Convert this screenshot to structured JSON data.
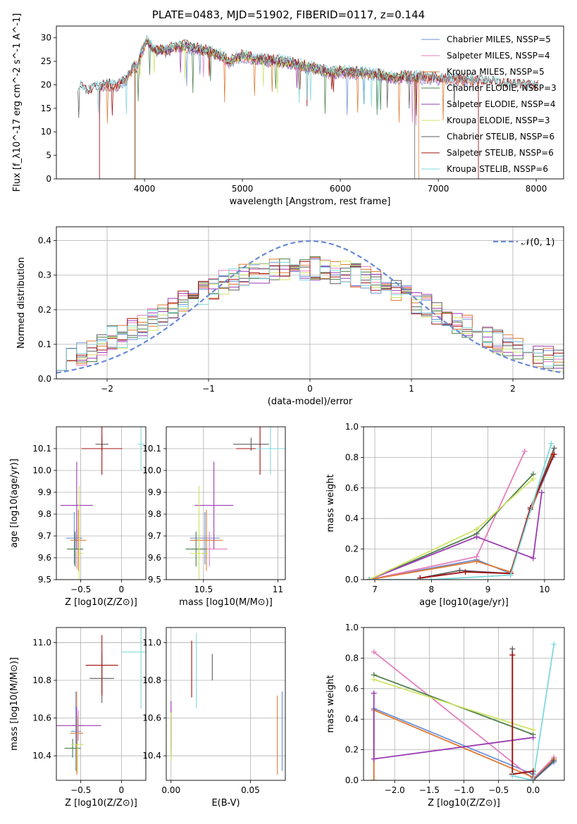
{
  "figure_title": "PLATE=0483, MJD=51902, FIBERID=0117, z=0.144",
  "colors": [
    "#6c8fd8",
    "#e37fbf",
    "#e07a30",
    "#4d7f4b",
    "#9b3bb3",
    "#cfe364",
    "#5d5d5d",
    "#a11010",
    "#7fd8dc"
  ],
  "chart_data": [
    {
      "type": "line",
      "title": "PLATE=0483, MJD=51902, FIBERID=0117, z=0.144",
      "xlabel": "wavelength [Angstrom, rest frame]",
      "ylabel": "Flux [f_λ10^-17 erg cm^-2 s^-1 A^-1]",
      "xlim": [
        3100,
        8280
      ],
      "ylim": [
        0,
        32.5
      ],
      "xticks": [
        4000,
        5000,
        6000,
        7000,
        8000
      ],
      "yticks": [
        0,
        5,
        10,
        15,
        20,
        25,
        30
      ],
      "grid": false,
      "legend_position": "top-right",
      "spectrum_profile": [
        [
          3320,
          19.5
        ],
        [
          3350,
          19.6
        ],
        [
          3420,
          18.7
        ],
        [
          3480,
          19.2
        ],
        [
          3560,
          19.6
        ],
        [
          3620,
          20.1
        ],
        [
          3700,
          19.7
        ],
        [
          3760,
          20.5
        ],
        [
          3820,
          21.2
        ],
        [
          3880,
          23.5
        ],
        [
          3930,
          24.0
        ],
        [
          3980,
          27.5
        ],
        [
          4020,
          29.5
        ],
        [
          4100,
          27.5
        ],
        [
          4200,
          27.3
        ],
        [
          4300,
          27.8
        ],
        [
          4400,
          28.3
        ],
        [
          4500,
          27.7
        ],
        [
          4600,
          27.3
        ],
        [
          4700,
          26.9
        ],
        [
          4800,
          26.0
        ],
        [
          4860,
          24.8
        ],
        [
          4900,
          25.3
        ],
        [
          5000,
          26.1
        ],
        [
          5100,
          25.6
        ],
        [
          5200,
          25.3
        ],
        [
          5300,
          25.1
        ],
        [
          5400,
          25.0
        ],
        [
          5500,
          24.6
        ],
        [
          5600,
          24.1
        ],
        [
          5700,
          23.7
        ],
        [
          5800,
          23.1
        ],
        [
          5900,
          22.6
        ],
        [
          6000,
          22.8
        ],
        [
          6100,
          22.7
        ],
        [
          6200,
          22.6
        ],
        [
          6300,
          22.4
        ],
        [
          6400,
          22.1
        ],
        [
          6500,
          21.7
        ],
        [
          6600,
          21.6
        ],
        [
          6700,
          21.8
        ],
        [
          6800,
          21.6
        ],
        [
          6900,
          21.5
        ],
        [
          7000,
          21.3
        ],
        [
          7100,
          21.2
        ],
        [
          7200,
          21.1
        ],
        [
          7300,
          21.0
        ],
        [
          7400,
          20.9
        ],
        [
          7500,
          20.6
        ],
        [
          7600,
          20.4
        ],
        [
          7700,
          20.1
        ],
        [
          7800,
          19.9
        ],
        [
          7900,
          19.8
        ],
        [
          8000,
          19.7
        ],
        [
          8020,
          19.8
        ]
      ],
      "series": [
        {
          "name": "Chabrier MILES, N_SSP=5",
          "x_range": [
            3540,
            7410
          ]
        },
        {
          "name": "Salpeter MILES, N_SSP=4",
          "x_range": [
            3540,
            7410
          ]
        },
        {
          "name": "Kroupa MILES, N_SSP=5",
          "x_range": [
            3540,
            7410
          ]
        },
        {
          "name": "Chabrier ELODIE, N_SSP=3",
          "x_range": [
            3900,
            6800
          ]
        },
        {
          "name": "Salpeter ELODIE, N_SSP=4",
          "x_range": [
            3900,
            6800
          ]
        },
        {
          "name": "Kroupa ELODIE, N_SSP=3",
          "x_range": [
            3900,
            6800
          ]
        },
        {
          "name": "Chabrier STELIB, N_SSP=6",
          "x_range": [
            3320,
            8020
          ]
        },
        {
          "name": "Salpeter STELIB, N_SSP=6",
          "x_range": [
            3320,
            8020
          ]
        },
        {
          "name": "Kroupa STELIB, N_SSP=6",
          "x_range": [
            3320,
            8020
          ]
        }
      ]
    },
    {
      "type": "histogram",
      "xlabel": "(data-model)/error",
      "ylabel": "Normed distribution",
      "xlim": [
        -2.5,
        2.5
      ],
      "ylim": [
        0,
        0.44
      ],
      "xticks": [
        -2,
        -1,
        0,
        1,
        2
      ],
      "yticks": [
        0.0,
        0.1,
        0.2,
        0.3,
        0.4
      ],
      "grid": true,
      "legend": "𝒩(0, 1)",
      "legend_position": "top-right",
      "bin_edges_range": [
        -2.5,
        2.5
      ],
      "n_bins": 50,
      "reference_curve": "normal(0,1)",
      "series_profile": [
        0.06,
        0.06,
        0.07,
        0.08,
        0.1,
        0.12,
        0.12,
        0.14,
        0.15,
        0.17,
        0.18,
        0.2,
        0.22,
        0.23,
        0.25,
        0.26,
        0.28,
        0.29,
        0.3,
        0.31,
        0.31,
        0.32,
        0.32,
        0.32,
        0.32,
        0.32,
        0.32,
        0.31,
        0.31,
        0.3,
        0.29,
        0.28,
        0.27,
        0.25,
        0.24,
        0.22,
        0.21,
        0.19,
        0.18,
        0.16,
        0.15,
        0.13,
        0.12,
        0.11,
        0.1,
        0.09,
        0.08,
        0.07,
        0.06,
        0.05
      ]
    },
    {
      "type": "scatter",
      "xlabel": "Z [log10(Z/Z⊙)]",
      "ylabel": "age [log10(age/yr)]",
      "xlim": [
        -0.8,
        0.3
      ],
      "ylim": [
        9.5,
        10.2
      ],
      "xticks": [
        -0.5,
        0.0
      ],
      "yticks": [
        9.5,
        9.6,
        9.7,
        9.8,
        9.9,
        10.0,
        10.1
      ],
      "grid": true,
      "points": [
        {
          "x": -0.58,
          "y": 9.69,
          "xerr": 0.1,
          "yerr": 0.12
        },
        {
          "x": -0.55,
          "y": 9.64,
          "xerr": 0.08,
          "yerr": 0.09
        },
        {
          "x": -0.53,
          "y": 9.68,
          "xerr": 0.1,
          "yerr": 0.14
        },
        {
          "x": -0.57,
          "y": 9.64,
          "xerr": 0.1,
          "yerr": 0.08
        },
        {
          "x": -0.55,
          "y": 9.84,
          "xerr": 0.2,
          "yerr": 0.2
        },
        {
          "x": -0.52,
          "y": 9.62,
          "xerr": 0.05,
          "yerr": 0.31
        },
        {
          "x": -0.24,
          "y": 10.12,
          "xerr": 0.08,
          "yerr": 0.03
        },
        {
          "x": -0.24,
          "y": 10.1,
          "xerr": 0.25,
          "yerr": 0.12
        },
        {
          "x": 0.24,
          "y": 10.12,
          "xerr": 0.04,
          "yerr": 0.12
        }
      ]
    },
    {
      "type": "scatter",
      "xlabel": "mass [log10(M/M⊙)]",
      "ylabel": "",
      "xlim": [
        10.25,
        11.05
      ],
      "ylim": [
        9.5,
        10.2
      ],
      "xticks": [
        10.5,
        11.0
      ],
      "yticks": [
        9.5,
        9.6,
        9.7,
        9.8,
        9.9,
        10.0,
        10.1
      ],
      "grid": true,
      "points": [
        {
          "x": 10.51,
          "y": 9.69,
          "xerr": 0.1,
          "yerr": 0.12
        },
        {
          "x": 10.54,
          "y": 9.64,
          "xerr": 0.12,
          "yerr": 0.08
        },
        {
          "x": 10.52,
          "y": 9.68,
          "xerr": 0.11,
          "yerr": 0.14
        },
        {
          "x": 10.45,
          "y": 9.64,
          "xerr": 0.07,
          "yerr": 0.08
        },
        {
          "x": 10.57,
          "y": 9.84,
          "xerr": 0.13,
          "yerr": 0.2
        },
        {
          "x": 10.47,
          "y": 9.62,
          "xerr": 0.06,
          "yerr": 0.31
        },
        {
          "x": 10.82,
          "y": 10.12,
          "xerr": 0.12,
          "yerr": 0.03
        },
        {
          "x": 10.88,
          "y": 10.1,
          "xerr": 0.16,
          "yerr": 0.12
        },
        {
          "x": 10.95,
          "y": 10.1,
          "xerr": 0.1,
          "yerr": 0.12
        }
      ]
    },
    {
      "type": "line",
      "xlabel": "age [log10(age/yr)]",
      "ylabel": "mass weight",
      "xlim": [
        6.8,
        10.35
      ],
      "ylim": [
        0.0,
        1.0
      ],
      "xticks": [
        7,
        8,
        9,
        10
      ],
      "yticks": [
        0.0,
        0.2,
        0.4,
        0.6,
        0.8,
        1.0
      ],
      "grid": true,
      "series": [
        {
          "points": [
            [
              6.9,
              0.0
            ],
            [
              8.8,
              0.13
            ],
            [
              9.4,
              0.04
            ],
            [
              9.7,
              0.4
            ],
            [
              10.15,
              0.8
            ]
          ]
        },
        {
          "points": [
            [
              6.9,
              0.0
            ],
            [
              8.8,
              0.15
            ],
            [
              9.65,
              0.84
            ]
          ]
        },
        {
          "points": [
            [
              6.9,
              0.0
            ],
            [
              8.8,
              0.12
            ],
            [
              9.4,
              0.05
            ],
            [
              9.7,
              0.4
            ],
            [
              10.15,
              0.82
            ]
          ]
        },
        {
          "points": [
            [
              6.9,
              0.0
            ],
            [
              8.8,
              0.3
            ],
            [
              9.8,
              0.69
            ]
          ]
        },
        {
          "points": [
            [
              6.9,
              0.0
            ],
            [
              8.8,
              0.28
            ],
            [
              9.8,
              0.14
            ],
            [
              9.95,
              0.57
            ]
          ]
        },
        {
          "points": [
            [
              6.9,
              0.0
            ],
            [
              8.8,
              0.33
            ],
            [
              9.8,
              0.66
            ]
          ]
        },
        {
          "points": [
            [
              7.8,
              0.01
            ],
            [
              8.5,
              0.06
            ],
            [
              9.4,
              0.04
            ],
            [
              9.75,
              0.46
            ],
            [
              10.17,
              0.86
            ]
          ]
        },
        {
          "points": [
            [
              7.8,
              0.01
            ],
            [
              8.6,
              0.05
            ],
            [
              9.4,
              0.04
            ],
            [
              9.75,
              0.47
            ],
            [
              10.17,
              0.82
            ]
          ]
        },
        {
          "points": [
            [
              6.9,
              0.0
            ],
            [
              8.0,
              0.0
            ],
            [
              9.4,
              0.03
            ],
            [
              10.12,
              0.89
            ]
          ]
        }
      ]
    },
    {
      "type": "scatter",
      "xlabel": "Z [log10(Z/Z⊙)]",
      "ylabel": "mass [log10(M/M⊙)]",
      "xlim": [
        -0.8,
        0.3
      ],
      "ylim": [
        10.27,
        11.08
      ],
      "xticks": [
        -0.5,
        0.0
      ],
      "yticks": [
        10.4,
        10.6,
        10.8,
        11.0
      ],
      "grid": true,
      "points": [
        {
          "x": -0.56,
          "y": 10.53,
          "xerr": 0.06,
          "yerr": 0.21
        },
        {
          "x": -0.53,
          "y": 10.56,
          "xerr": 0.07,
          "yerr": 0.08
        },
        {
          "x": -0.55,
          "y": 10.52,
          "xerr": 0.08,
          "yerr": 0.22
        },
        {
          "x": -0.6,
          "y": 10.44,
          "xerr": 0.1,
          "yerr": 0.05
        },
        {
          "x": -0.55,
          "y": 10.56,
          "xerr": 0.3,
          "yerr": 0.1
        },
        {
          "x": -0.54,
          "y": 10.46,
          "xerr": 0.08,
          "yerr": 0.15
        },
        {
          "x": -0.24,
          "y": 10.81,
          "xerr": 0.15,
          "yerr": 0.13
        },
        {
          "x": -0.24,
          "y": 10.88,
          "xerr": 0.2,
          "yerr": 0.16
        },
        {
          "x": 0.24,
          "y": 10.95,
          "xerr": 0.24,
          "yerr": 0.3
        }
      ]
    },
    {
      "type": "scatter",
      "xlabel": "E(B-V)",
      "ylabel": "",
      "xlim": [
        -0.003,
        0.072
      ],
      "ylim": [
        10.27,
        11.08
      ],
      "xticks": [
        0.0,
        0.05
      ],
      "xtick_labels": [
        "0.00",
        "0.05"
      ],
      "yticks": [
        10.4,
        10.6,
        10.8,
        11.0
      ],
      "grid": true,
      "points": [
        {
          "x": 0.07,
          "y": 10.53,
          "yerr": 0.21
        },
        {
          "x": 0.0,
          "y": 10.56,
          "yerr": 0.08
        },
        {
          "x": 0.067,
          "y": 10.51,
          "yerr": 0.21
        },
        {
          "x": 0.0,
          "y": 10.5,
          "yerr": 0.1
        },
        {
          "x": 0.0,
          "y": 10.56,
          "yerr": 0.13
        },
        {
          "x": 0.0,
          "y": 10.5,
          "yerr": 0.13
        },
        {
          "x": 0.026,
          "y": 10.87,
          "yerr": 0.07
        },
        {
          "x": 0.013,
          "y": 10.86,
          "yerr": 0.15
        },
        {
          "x": 0.016,
          "y": 10.85,
          "yerr": 0.2
        }
      ]
    },
    {
      "type": "line",
      "xlabel": "Z [log10(Z/Z⊙)]",
      "ylabel": "mass weight",
      "xlim": [
        -2.45,
        0.45
      ],
      "ylim": [
        0.0,
        1.0
      ],
      "xticks": [
        -2.0,
        -1.5,
        -1.0,
        -0.5,
        0.0
      ],
      "xtick_labels": [
        "−2.0",
        "−1.5",
        "−1.0",
        "−0.5",
        "0.0"
      ],
      "yticks": [
        0.0,
        0.2,
        0.4,
        0.6,
        0.8,
        1.0
      ],
      "grid": true,
      "series": [
        {
          "points": [
            [
              -2.3,
              0.0
            ],
            [
              -2.3,
              0.47
            ],
            [
              0.0,
              0.04
            ],
            [
              0.0,
              0.0
            ],
            [
              0.3,
              0.12
            ]
          ]
        },
        {
          "points": [
            [
              -2.3,
              0.84
            ],
            [
              0.0,
              0.01
            ],
            [
              0.3,
              0.15
            ]
          ]
        },
        {
          "points": [
            [
              -2.3,
              0.0
            ],
            [
              -2.3,
              0.46
            ],
            [
              0.0,
              0.02
            ],
            [
              0.0,
              0.0
            ],
            [
              0.3,
              0.14
            ]
          ]
        },
        {
          "points": [
            [
              -2.3,
              0.69
            ],
            [
              0.0,
              0.3
            ]
          ]
        },
        {
          "points": [
            [
              -2.3,
              0.57
            ],
            [
              -2.3,
              0.14
            ],
            [
              0.0,
              0.28
            ]
          ]
        },
        {
          "points": [
            [
              -2.3,
              0.66
            ],
            [
              0.0,
              0.33
            ]
          ]
        },
        {
          "points": [
            [
              -0.3,
              0.86
            ],
            [
              -0.3,
              0.04
            ],
            [
              0.0,
              0.06
            ],
            [
              0.0,
              0.0
            ],
            [
              0.3,
              0.13
            ]
          ]
        },
        {
          "points": [
            [
              -0.3,
              0.82
            ],
            [
              -0.3,
              0.04
            ],
            [
              0.0,
              0.06
            ],
            [
              0.0,
              0.0
            ]
          ]
        },
        {
          "points": [
            [
              -0.3,
              0.03
            ],
            [
              0.0,
              0.0
            ],
            [
              0.3,
              0.89
            ]
          ]
        }
      ]
    }
  ]
}
